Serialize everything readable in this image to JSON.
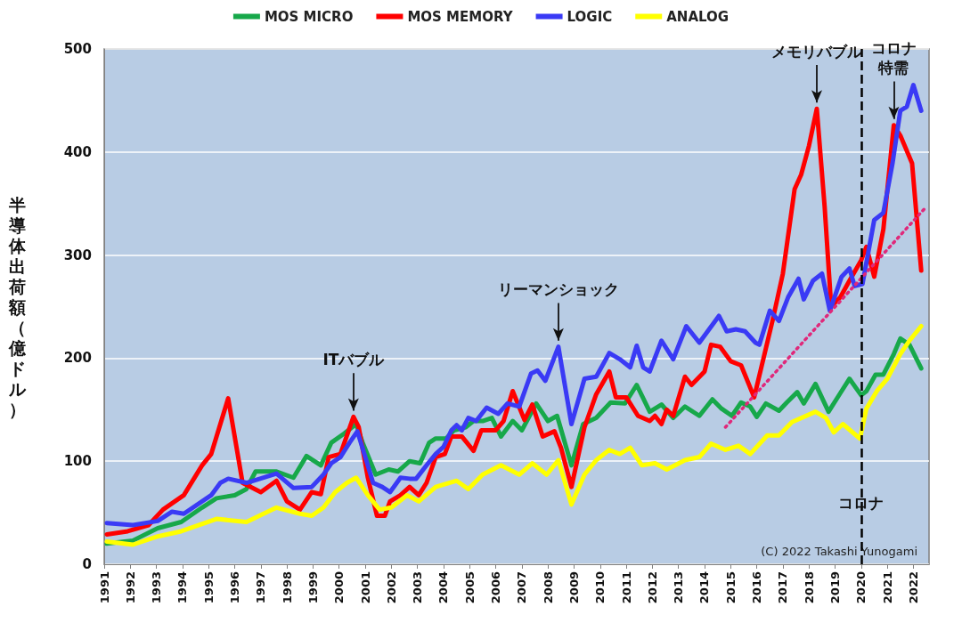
{
  "chart_data": {
    "type": "line",
    "ylabel": "半導体出荷額（億ドル）",
    "ylim": [
      0,
      500
    ],
    "yticks": [
      0,
      100,
      200,
      300,
      400,
      500
    ],
    "xlim": [
      1991,
      2022.6
    ],
    "xticks": [
      1991,
      1992,
      1993,
      1994,
      1995,
      1996,
      1997,
      1998,
      1999,
      2000,
      2001,
      2002,
      2003,
      2004,
      2005,
      2006,
      2007,
      2008,
      2009,
      2010,
      2011,
      2012,
      2013,
      2014,
      2015,
      2016,
      2017,
      2018,
      2019,
      2020,
      2021,
      2022
    ],
    "grid": "y",
    "legend": "top",
    "marker": "none",
    "line_style": "solid",
    "series": [
      {
        "name": "MOS MICRO",
        "color": "#17a84a",
        "x": [
          1991.1,
          1992.1,
          1993.05,
          1993.95,
          1994.75,
          1995.3,
          1996.0,
          1996.45,
          1996.8,
          1997.6,
          1998.25,
          1998.75,
          1999.3,
          1999.7,
          2000.2,
          2000.65,
          2000.9,
          2001.4,
          2001.9,
          2002.25,
          2002.7,
          2003.1,
          2003.45,
          2003.7,
          2004.1,
          2004.4,
          2004.85,
          2005.15,
          2005.5,
          2005.85,
          2006.2,
          2006.65,
          2007.0,
          2007.55,
          2008.0,
          2008.35,
          2008.9,
          2009.35,
          2009.85,
          2010.4,
          2010.95,
          2011.4,
          2011.9,
          2012.35,
          2012.8,
          2013.25,
          2013.8,
          2014.3,
          2014.65,
          2015.05,
          2015.4,
          2015.75,
          2016.0,
          2016.35,
          2016.85,
          2017.15,
          2017.55,
          2017.8,
          2018.25,
          2018.75,
          2019.2,
          2019.55,
          2020.0,
          2020.2,
          2020.55,
          2020.85,
          2021.25,
          2021.5,
          2021.85,
          2022.3
        ],
        "values": [
          20,
          23,
          35,
          41,
          55,
          64,
          67,
          73,
          90,
          90,
          84,
          105,
          96,
          118,
          127,
          136,
          118,
          87,
          92,
          90,
          100,
          98,
          118,
          122,
          122,
          130,
          133,
          139,
          139,
          142,
          124,
          139,
          130,
          156,
          139,
          144,
          96,
          136,
          142,
          157,
          156,
          174,
          148,
          155,
          142,
          153,
          144,
          160,
          151,
          144,
          157,
          153,
          143,
          156,
          149,
          157,
          167,
          156,
          175,
          148,
          166,
          180,
          164,
          168,
          184,
          184,
          204,
          219,
          213,
          190
        ]
      },
      {
        "name": "MOS MEMORY",
        "color": "#ff0000",
        "x": [
          1991.1,
          1991.9,
          1992.7,
          1993.25,
          1994.05,
          1994.75,
          1995.1,
          1995.75,
          1996.3,
          1997.0,
          1997.6,
          1998.0,
          1998.5,
          1998.95,
          1999.3,
          1999.6,
          2000.05,
          2000.55,
          2000.75,
          2001.1,
          2001.45,
          2001.75,
          2001.95,
          2002.35,
          2002.7,
          2003.05,
          2003.35,
          2003.7,
          2004.05,
          2004.3,
          2004.7,
          2005.15,
          2005.45,
          2006.0,
          2006.3,
          2006.65,
          2007.1,
          2007.4,
          2007.8,
          2008.25,
          2008.5,
          2008.9,
          2009.4,
          2009.85,
          2010.35,
          2010.6,
          2011.0,
          2011.45,
          2011.9,
          2012.1,
          2012.35,
          2012.55,
          2012.8,
          2013.25,
          2013.5,
          2014.0,
          2014.25,
          2014.6,
          2015.0,
          2015.4,
          2015.9,
          2016.6,
          2017.0,
          2017.45,
          2017.7,
          2018.0,
          2018.3,
          2018.6,
          2018.85,
          2019.2,
          2019.55,
          2020.0,
          2020.2,
          2020.5,
          2020.85,
          2021.25,
          2021.5,
          2021.95,
          2022.3
        ],
        "values": [
          29,
          32,
          38,
          53,
          67,
          96,
          107,
          161,
          79,
          70,
          81,
          61,
          53,
          70,
          68,
          104,
          107,
          143,
          133,
          84,
          47,
          47,
          61,
          67,
          75,
          67,
          79,
          104,
          107,
          124,
          124,
          110,
          130,
          130,
          139,
          168,
          140,
          155,
          124,
          129,
          113,
          75,
          133,
          165,
          187,
          162,
          162,
          144,
          139,
          144,
          136,
          150,
          144,
          182,
          174,
          187,
          213,
          211,
          197,
          193,
          162,
          236,
          282,
          364,
          378,
          406,
          442,
          347,
          250,
          259,
          275,
          295,
          308,
          279,
          325,
          426,
          416,
          389,
          285
        ]
      },
      {
        "name": "LOGIC",
        "color": "#3a3af5",
        "x": [
          1991.1,
          1992.1,
          1993.05,
          1993.6,
          1994.05,
          1995.1,
          1995.45,
          1995.75,
          1996.45,
          1997.6,
          1998.25,
          1998.95,
          1999.4,
          1999.7,
          2000.05,
          2000.4,
          2000.7,
          2001.0,
          2001.3,
          2001.65,
          2001.95,
          2002.35,
          2002.7,
          2002.95,
          2003.35,
          2003.7,
          2004.0,
          2004.3,
          2004.5,
          2004.7,
          2004.95,
          2005.25,
          2005.65,
          2006.1,
          2006.45,
          2006.9,
          2007.35,
          2007.6,
          2007.9,
          2008.4,
          2008.9,
          2009.4,
          2009.85,
          2010.35,
          2010.75,
          2011.15,
          2011.4,
          2011.65,
          2011.9,
          2012.35,
          2012.8,
          2013.3,
          2013.8,
          2014.55,
          2014.85,
          2015.2,
          2015.55,
          2015.95,
          2016.1,
          2016.5,
          2016.85,
          2017.2,
          2017.6,
          2017.8,
          2018.15,
          2018.5,
          2018.8,
          2019.25,
          2019.55,
          2019.75,
          2020.05,
          2020.5,
          2020.85,
          2021.2,
          2021.5,
          2021.75,
          2022.0,
          2022.3
        ],
        "values": [
          40,
          38,
          42,
          51,
          49,
          67,
          79,
          83,
          79,
          88,
          74,
          75,
          87,
          98,
          104,
          118,
          129,
          104,
          79,
          75,
          70,
          84,
          83,
          83,
          96,
          107,
          114,
          130,
          135,
          130,
          142,
          139,
          152,
          146,
          156,
          153,
          185,
          188,
          178,
          211,
          136,
          180,
          182,
          205,
          199,
          191,
          212,
          191,
          187,
          217,
          199,
          231,
          215,
          241,
          226,
          228,
          226,
          215,
          213,
          246,
          236,
          259,
          277,
          257,
          275,
          282,
          246,
          279,
          287,
          270,
          272,
          334,
          341,
          389,
          440,
          444,
          465,
          440
        ]
      },
      {
        "name": "ANALOG",
        "color": "#ffff00",
        "x": [
          1991.1,
          1992.1,
          1993.05,
          1993.95,
          1995.3,
          1996.45,
          1997.6,
          1998.5,
          1998.95,
          1999.4,
          1999.85,
          2000.3,
          2000.65,
          2001.1,
          2001.55,
          2002.0,
          2002.6,
          2003.05,
          2003.7,
          2004.5,
          2004.95,
          2005.5,
          2006.2,
          2006.9,
          2007.4,
          2007.95,
          2008.4,
          2008.9,
          2009.4,
          2009.85,
          2010.35,
          2010.75,
          2011.15,
          2011.6,
          2012.1,
          2012.55,
          2013.25,
          2013.8,
          2014.25,
          2014.8,
          2015.3,
          2015.75,
          2016.4,
          2016.85,
          2017.35,
          2018.25,
          2018.65,
          2018.95,
          2019.3,
          2019.95,
          2020.2,
          2020.6,
          2021.0,
          2021.5,
          2021.85,
          2022.3
        ],
        "values": [
          22,
          19,
          27,
          32,
          44,
          41,
          55,
          49,
          47,
          55,
          70,
          79,
          84,
          67,
          53,
          55,
          67,
          61,
          75,
          81,
          73,
          87,
          96,
          87,
          98,
          87,
          101,
          58,
          87,
          101,
          111,
          107,
          113,
          96,
          98,
          92,
          101,
          104,
          117,
          111,
          115,
          107,
          125,
          125,
          138,
          148,
          142,
          128,
          136,
          122,
          151,
          168,
          180,
          204,
          217,
          231
        ]
      },
      {
        "type": "line",
        "color": "#e0287a",
        "line_style": "dotted",
        "x": [
          2014.8,
          2022.5
        ],
        "values": [
          133,
          347
        ]
      }
    ],
    "ref_lines": [
      {
        "axis": "x",
        "value": 2020,
        "label": "コロナ",
        "color": "#000000",
        "line_style": "dashed"
      }
    ],
    "annotations": [
      {
        "text": "ITバブル",
        "x": 2000.55,
        "y": 143
      },
      {
        "text": "リーマンショック",
        "x": 2008.4,
        "y": 211
      },
      {
        "text": "メモリバブル",
        "x": 2018.3,
        "y": 442
      },
      {
        "text": "コロナ特需",
        "x": 2021.25,
        "y": 426
      },
      "(C) 2022 Takashi Yunogami"
    ]
  }
}
